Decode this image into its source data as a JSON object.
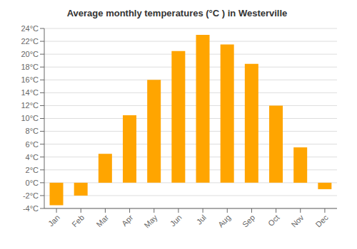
{
  "chart_data": {
    "type": "bar",
    "title": "Average monthly temperatures (°C ) in Westerville",
    "categories": [
      "Jan",
      "Feb",
      "Mar",
      "Apr",
      "May",
      "Jun",
      "Jul",
      "Aug",
      "Sep",
      "Oct",
      "Nov",
      "Dec"
    ],
    "values": [
      -3.5,
      -2.0,
      4.5,
      10.5,
      16.0,
      20.5,
      23.0,
      21.5,
      18.5,
      12.0,
      5.5,
      -1.0
    ],
    "color": "#FFA500",
    "ylim": [
      -4,
      24
    ],
    "yticks": [
      {
        "value": -4,
        "label": "-4°C"
      },
      {
        "value": -2,
        "label": "-2°C"
      },
      {
        "value": 0,
        "label": "0°C"
      },
      {
        "value": 2,
        "label": "2°C"
      },
      {
        "value": 4,
        "label": "4°C"
      },
      {
        "value": 6,
        "label": "6°C"
      },
      {
        "value": 8,
        "label": "8°C"
      },
      {
        "value": 10,
        "label": "10°C"
      },
      {
        "value": 12,
        "label": "12°C"
      },
      {
        "value": 14,
        "label": "14°C"
      },
      {
        "value": 16,
        "label": "16°C"
      },
      {
        "value": 18,
        "label": "18°C"
      },
      {
        "value": 20,
        "label": "20°C"
      },
      {
        "value": 22,
        "label": "22°C"
      },
      {
        "value": 24,
        "label": "24°C"
      }
    ],
    "grid": true
  }
}
